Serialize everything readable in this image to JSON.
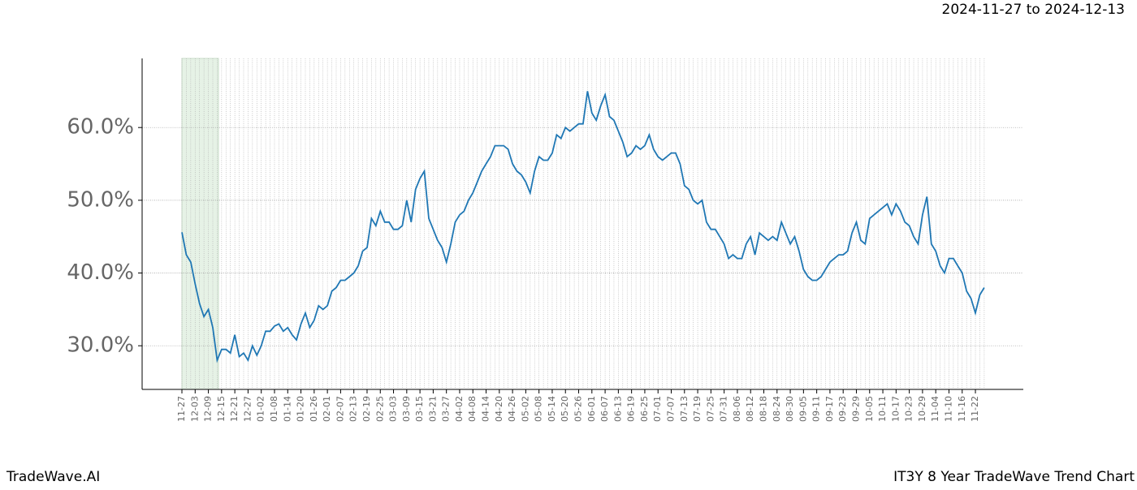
{
  "header": {
    "date_range": "2024-11-27 to 2024-12-13"
  },
  "footer": {
    "brand": "TradeWave.AI",
    "chart_name": "IT3Y 8 Year TradeWave Trend Chart"
  },
  "chart_data": {
    "type": "line",
    "color": "#1f77b4",
    "grid": true,
    "categories": [
      "11-27",
      null,
      null,
      "12-03",
      null,
      null,
      "12-09",
      null,
      null,
      "12-15",
      null,
      null,
      "12-21",
      null,
      null,
      "12-27",
      null,
      null,
      "01-02",
      null,
      null,
      "01-08",
      null,
      null,
      "01-14",
      null,
      null,
      "01-20",
      null,
      null,
      "01-26",
      null,
      null,
      "02-01",
      null,
      null,
      "02-07",
      null,
      null,
      "02-13",
      null,
      null,
      "02-19",
      null,
      null,
      "02-25",
      null,
      null,
      "03-03",
      null,
      null,
      "03-09",
      null,
      null,
      "03-15",
      null,
      null,
      "03-21",
      null,
      null,
      "03-27",
      null,
      null,
      "04-02",
      null,
      null,
      "04-08",
      null,
      null,
      "04-14",
      null,
      null,
      "04-20",
      null,
      null,
      "04-26",
      null,
      null,
      "05-02",
      null,
      null,
      "05-08",
      null,
      null,
      "05-14",
      null,
      null,
      "05-20",
      null,
      null,
      "05-26",
      null,
      null,
      "06-01",
      null,
      null,
      "06-07",
      null,
      null,
      "06-13",
      null,
      null,
      "06-19",
      null,
      null,
      "06-25",
      null,
      null,
      "07-01",
      null,
      null,
      "07-07",
      null,
      null,
      "07-13",
      null,
      null,
      "07-19",
      null,
      null,
      "07-25",
      null,
      null,
      "07-31",
      null,
      null,
      "08-06",
      null,
      null,
      "08-12",
      null,
      null,
      "08-18",
      null,
      null,
      "08-24",
      null,
      null,
      "08-30",
      null,
      null,
      "09-05",
      null,
      null,
      "09-11",
      null,
      null,
      "09-17",
      null,
      null,
      "09-23",
      null,
      null,
      "09-29",
      null,
      null,
      "10-05",
      null,
      null,
      "10-11",
      null,
      null,
      "10-17",
      null,
      null,
      "10-23",
      null,
      null,
      "10-29",
      null,
      null,
      "11-04",
      null,
      null,
      "11-10",
      null,
      null,
      "11-16",
      null,
      null,
      "11-22",
      null,
      null
    ],
    "values": [
      45.6,
      42.5,
      41.5,
      38.5,
      35.8,
      34.0,
      35.0,
      32.5,
      28.0,
      29.5,
      29.5,
      29.0,
      31.5,
      28.5,
      29.0,
      28.0,
      30.0,
      28.7,
      30.0,
      32.0,
      32.0,
      32.7,
      33.0,
      32.0,
      32.5,
      31.5,
      30.8,
      33.0,
      34.5,
      32.5,
      33.5,
      35.5,
      35.0,
      35.5,
      37.5,
      38.0,
      39.0,
      39.0,
      39.5,
      40.0,
      41.0,
      43.0,
      43.5,
      47.5,
      46.5,
      48.5,
      47.0,
      47.0,
      46.0,
      46.0,
      46.5,
      50.0,
      47.0,
      51.5,
      53.0,
      54.0,
      47.5,
      46.0,
      44.5,
      43.5,
      41.5,
      44.0,
      47.0,
      48.0,
      48.5,
      50.0,
      51.0,
      52.5,
      54.0,
      55.0,
      56.0,
      57.5,
      57.5,
      57.5,
      57.0,
      55.0,
      54.0,
      53.5,
      52.5,
      51.0,
      54.0,
      56.0,
      55.5,
      55.5,
      56.5,
      59.0,
      58.5,
      60.0,
      59.5,
      60.0,
      60.5,
      60.5,
      65.0,
      62.0,
      61.0,
      63.0,
      64.5,
      61.5,
      61.0,
      59.5,
      58.0,
      56.0,
      56.5,
      57.5,
      57.0,
      57.5,
      59.0,
      57.0,
      56.0,
      55.5,
      56.0,
      56.5,
      56.5,
      55.0,
      52.0,
      51.5,
      50.0,
      49.5,
      50.0,
      47.0,
      46.0,
      46.0,
      45.0,
      44.0,
      42.0,
      42.5,
      42.0,
      42.0,
      44.0,
      45.0,
      42.5,
      45.5,
      45.0,
      44.5,
      45.0,
      44.5,
      47.0,
      45.5,
      44.0,
      45.0,
      43.0,
      40.5,
      39.5,
      39.0,
      39.0,
      39.5,
      40.5,
      41.5,
      42.0,
      42.5,
      42.5,
      43.0,
      45.5,
      47.0,
      44.5,
      44.0,
      47.5,
      48.0,
      48.5,
      49.0,
      49.5,
      48.0,
      49.5,
      48.5,
      47.0,
      46.5,
      45.0,
      44.0,
      48.0,
      50.5,
      44.0,
      43.0,
      41.0,
      40.0,
      42.0,
      42.0,
      41.0,
      40.0,
      37.5,
      36.5,
      34.5,
      37.0,
      38.0
    ],
    "ylim": [
      24.0,
      69.5
    ],
    "yticks": [
      {
        "value": 30,
        "label": "30.0%"
      },
      {
        "value": 40,
        "label": "40.0%"
      },
      {
        "value": 50,
        "label": "50.0%"
      },
      {
        "value": 60,
        "label": "60.0%"
      }
    ]
  }
}
